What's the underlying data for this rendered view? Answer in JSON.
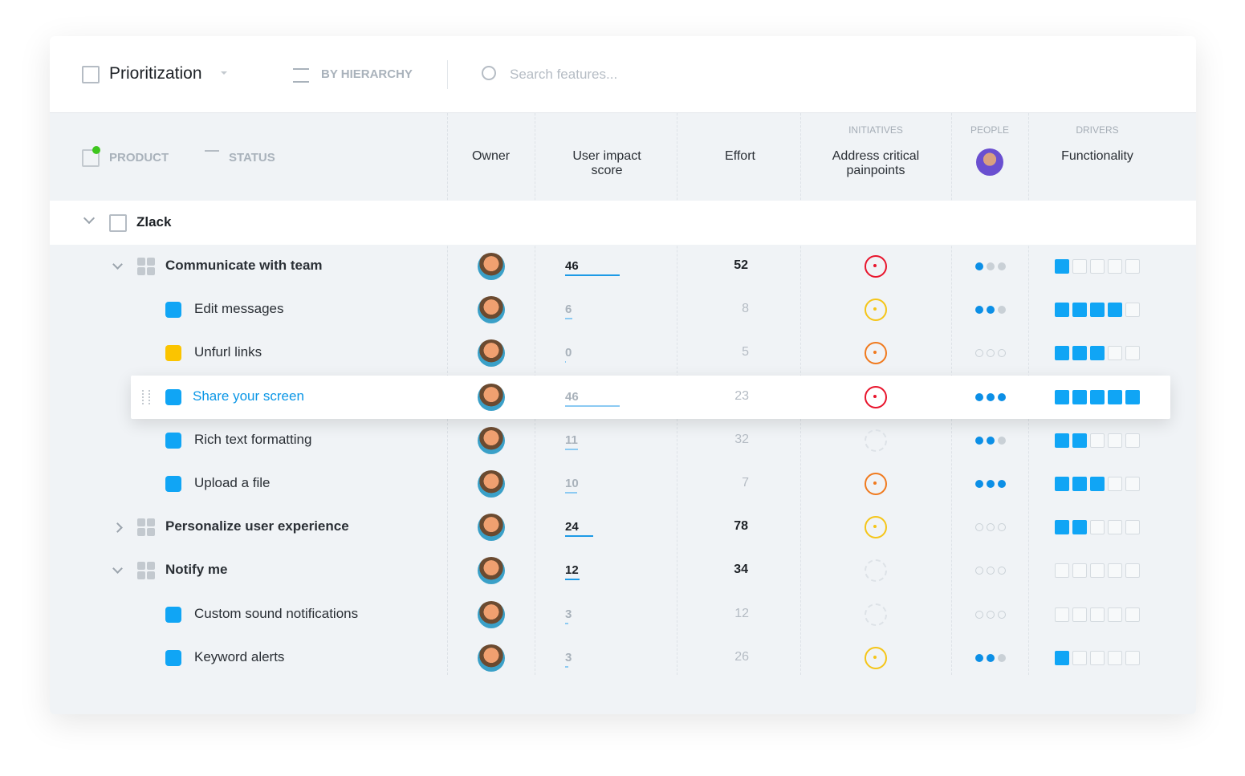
{
  "toolbar": {
    "view": "Prioritization",
    "hierarchy": "BY HIERARCHY",
    "search": "Search features..."
  },
  "header": {
    "product": "PRODUCT",
    "status": "STATUS",
    "owner": "Owner",
    "impact": "User impact score",
    "effort": "Effort",
    "initiatives": "INITIATIVES",
    "initiative": "Address critical painpoints",
    "people": "PEOPLE",
    "drivers": "DRIVERS",
    "driver": "Functionality"
  },
  "product": "Zlack",
  "rows": [
    {
      "name": "Communicate with team",
      "kind": "group",
      "expanded": true,
      "impact": 46,
      "effort": 52,
      "initiative": "#e8142c",
      "people": 1,
      "functionality": 1
    },
    {
      "name": "Edit messages",
      "kind": "feature",
      "color": "#10a5f5",
      "impact": 6,
      "effort": 8,
      "initiative": "#f5c518",
      "people": 2,
      "functionality": 4
    },
    {
      "name": "Unfurl links",
      "kind": "feature",
      "color": "#fbc400",
      "impact": 0,
      "effort": 5,
      "initiative": "#f07a1e",
      "people": 0,
      "functionality": 3
    },
    {
      "name": "Share your screen",
      "kind": "feature",
      "color": "#10a5f5",
      "highlighted": true,
      "impact": 46,
      "effort": 23,
      "initiative": "#e8142c",
      "people": 3,
      "functionality": 5
    },
    {
      "name": "Rich text formatting",
      "kind": "feature",
      "color": "#10a5f5",
      "impact": 11,
      "effort": 32,
      "initiative": null,
      "people": 2,
      "functionality": 2
    },
    {
      "name": "Upload a file",
      "kind": "feature",
      "color": "#10a5f5",
      "impact": 10,
      "effort": 7,
      "initiative": "#f07a1e",
      "people": 3,
      "functionality": 3
    },
    {
      "name": "Personalize user experience",
      "kind": "group",
      "expanded": false,
      "impact": 24,
      "effort": 78,
      "initiative": "#f5c518",
      "people": 0,
      "functionality": 2
    },
    {
      "name": "Notify me",
      "kind": "group",
      "expanded": true,
      "impact": 12,
      "effort": 34,
      "initiative": null,
      "people": 0,
      "functionality": 0
    },
    {
      "name": "Custom sound notifications",
      "kind": "feature",
      "color": "#10a5f5",
      "impact": 3,
      "effort": 12,
      "initiative": null,
      "people": 0,
      "functionality": 0
    },
    {
      "name": "Keyword alerts",
      "kind": "feature",
      "color": "#10a5f5",
      "impact": 3,
      "effort": 26,
      "initiative": "#f5c518",
      "people": 2,
      "functionality": 1
    }
  ]
}
